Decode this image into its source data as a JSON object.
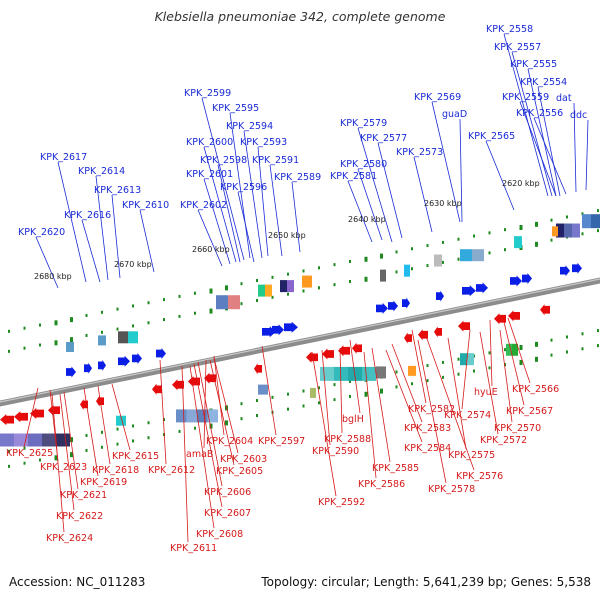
{
  "title": "Klebsiella pneumoniae 342, complete genome",
  "footer": {
    "accession": "Accession: NC_011283",
    "summary": "Topology: circular; Length: 5,641,239 bp; Genes: 5,538"
  },
  "colors": {
    "backbone": "#8c8c8c",
    "forward_gene": "#0a1ee6",
    "reverse_gene": "#e60a0a",
    "forward_label": "#1a2bd6",
    "reverse_label": "#d61a1a",
    "tick_marks": "#1f8a1f"
  },
  "kbp_ticks": [
    "2620 kbp",
    "2630 kbp",
    "2640 kbp",
    "2650 kbp",
    "2660 kbp",
    "2670 kbp",
    "2680 kbp"
  ],
  "forward_labels": [
    "KPK_2558",
    "KPK_2557",
    "KPK_2555",
    "KPK_2554",
    "KPK_2559",
    "dat",
    "KPK_2556",
    "ddc",
    "KPK_2569",
    "guaD",
    "KPK_2565",
    "KPK_2579",
    "KPK_2577",
    "KPK_2573",
    "KPK_2580",
    "KPK_2581",
    "KPK_2599",
    "KPK_2595",
    "KPK_2594",
    "KPK_2600",
    "KPK_2593",
    "KPK_2598",
    "KPK_2591",
    "KPK_2601",
    "KPK_2589",
    "KPK_2596",
    "KPK_2602",
    "KPK_2617",
    "KPK_2614",
    "KPK_2613",
    "KPK_2610",
    "KPK_2616",
    "KPK_2620"
  ],
  "reverse_labels": [
    "hyuE",
    "KPK_2566",
    "KPK_2567",
    "KPK_2570",
    "KPK_2574",
    "KPK_2572",
    "KPK_2582",
    "bglH",
    "KPK_2583",
    "KPK_2588",
    "KPK_2584",
    "KPK_2575",
    "KPK_2590",
    "KPK_2585",
    "KPK_2576",
    "KPK_2586",
    "KPK_2578",
    "KPK_2592",
    "KPK_2597",
    "KPK_2604",
    "amaB",
    "KPK_2603",
    "KPK_2612",
    "KPK_2605",
    "KPK_2606",
    "KPK_2607",
    "KPK_2608",
    "KPK_2611",
    "KPK_2625",
    "KPK_2615",
    "KPK_2623",
    "KPK_2618",
    "KPK_2619",
    "KPK_2621",
    "KPK_2622",
    "KPK_2624"
  ]
}
